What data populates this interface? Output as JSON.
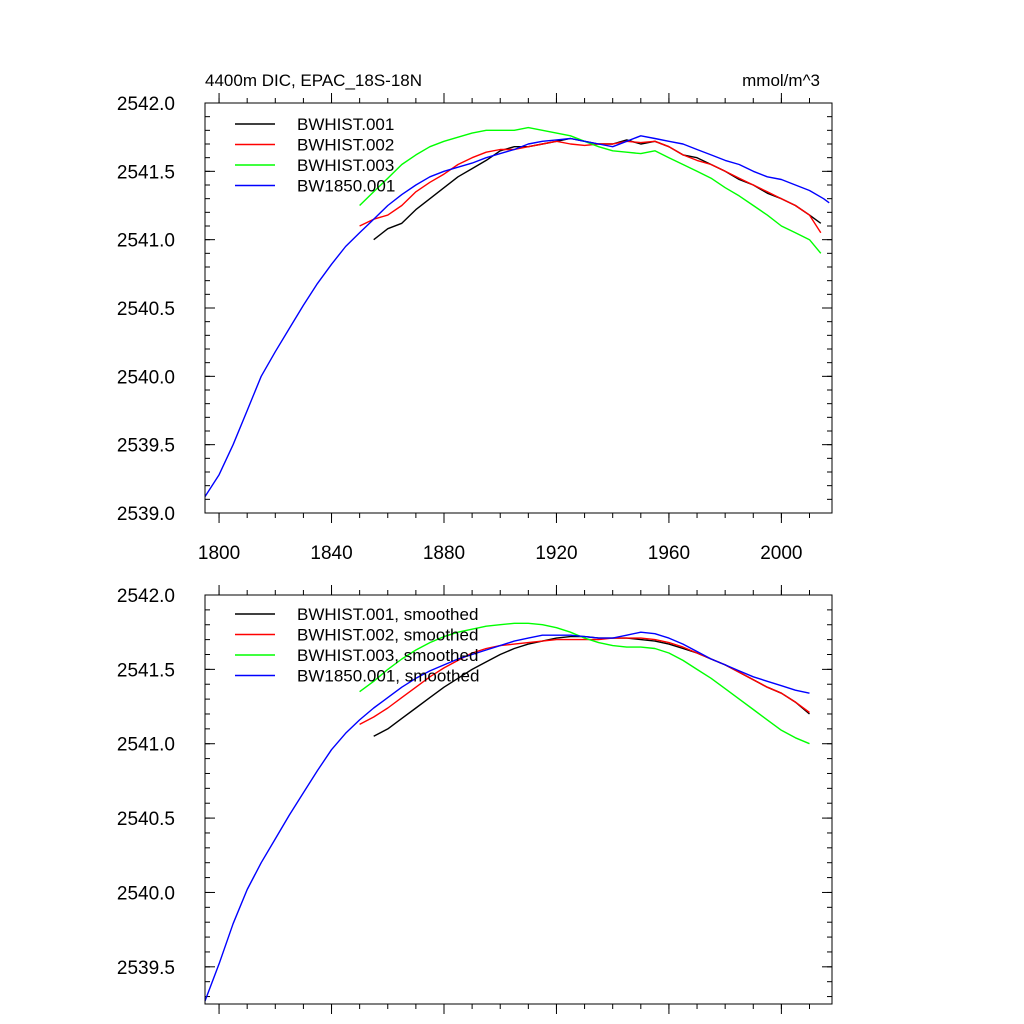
{
  "chart_data": [
    {
      "type": "line",
      "title_left": "4400m DIC, EPAC_18S-18N",
      "title_right": "mmol/m^3",
      "xlim": [
        1795,
        2018
      ],
      "ylim": [
        2539.0,
        2542.0
      ],
      "xticks": [
        1800,
        1840,
        1880,
        1920,
        1960,
        2000
      ],
      "yticks": [
        2539.0,
        2539.5,
        2540.0,
        2540.5,
        2541.0,
        2541.5,
        2542.0
      ],
      "ytick_labels": [
        "2539.0",
        "2539.5",
        "2540.0",
        "2540.5",
        "2541.0",
        "2541.5",
        "2542.0"
      ],
      "xtick_labels": [
        "1800",
        "1840",
        "1880",
        "1920",
        "1960",
        "2000"
      ],
      "legend_position": "top-left",
      "grid": false,
      "series": [
        {
          "name": "BWHIST.001",
          "color": "#000000",
          "x": [
            1855,
            1860,
            1865,
            1870,
            1875,
            1880,
            1885,
            1890,
            1895,
            1900,
            1905,
            1910,
            1915,
            1920,
            1925,
            1930,
            1935,
            1940,
            1945,
            1950,
            1955,
            1960,
            1965,
            1970,
            1975,
            1980,
            1985,
            1990,
            1995,
            2000,
            2005,
            2010,
            2014
          ],
          "y": [
            2541.0,
            2541.08,
            2541.12,
            2541.22,
            2541.3,
            2541.38,
            2541.46,
            2541.52,
            2541.58,
            2541.65,
            2541.68,
            2541.68,
            2541.7,
            2541.72,
            2541.74,
            2541.72,
            2541.7,
            2541.7,
            2541.73,
            2541.7,
            2541.72,
            2541.68,
            2541.62,
            2541.6,
            2541.55,
            2541.5,
            2541.44,
            2541.4,
            2541.34,
            2541.3,
            2541.25,
            2541.18,
            2541.12
          ]
        },
        {
          "name": "BWHIST.002",
          "color": "#ff0000",
          "x": [
            1850,
            1855,
            1860,
            1865,
            1870,
            1875,
            1880,
            1885,
            1890,
            1895,
            1900,
            1905,
            1910,
            1915,
            1920,
            1925,
            1930,
            1935,
            1940,
            1945,
            1950,
            1955,
            1960,
            1965,
            1970,
            1975,
            1980,
            1985,
            1990,
            1995,
            2000,
            2005,
            2010,
            2014
          ],
          "y": [
            2541.1,
            2541.15,
            2541.18,
            2541.25,
            2541.35,
            2541.42,
            2541.48,
            2541.55,
            2541.6,
            2541.64,
            2541.66,
            2541.66,
            2541.68,
            2541.7,
            2541.72,
            2541.7,
            2541.69,
            2541.7,
            2541.7,
            2541.72,
            2541.71,
            2541.72,
            2541.68,
            2541.62,
            2541.58,
            2541.55,
            2541.5,
            2541.45,
            2541.4,
            2541.35,
            2541.3,
            2541.25,
            2541.18,
            2541.05
          ]
        },
        {
          "name": "BWHIST.003",
          "color": "#00ff00",
          "x": [
            1850,
            1855,
            1860,
            1865,
            1870,
            1875,
            1880,
            1885,
            1890,
            1895,
            1900,
            1905,
            1910,
            1915,
            1920,
            1925,
            1930,
            1935,
            1940,
            1945,
            1950,
            1955,
            1960,
            1965,
            1970,
            1975,
            1980,
            1985,
            1990,
            1995,
            2000,
            2005,
            2010,
            2014
          ],
          "y": [
            2541.25,
            2541.35,
            2541.45,
            2541.55,
            2541.62,
            2541.68,
            2541.72,
            2541.75,
            2541.78,
            2541.8,
            2541.8,
            2541.8,
            2541.82,
            2541.8,
            2541.78,
            2541.76,
            2541.72,
            2541.68,
            2541.65,
            2541.64,
            2541.63,
            2541.65,
            2541.6,
            2541.55,
            2541.5,
            2541.45,
            2541.38,
            2541.32,
            2541.25,
            2541.18,
            2541.1,
            2541.05,
            2541.0,
            2540.9
          ]
        },
        {
          "name": "BW1850.001",
          "color": "#0000ff",
          "x": [
            1795,
            1800,
            1805,
            1810,
            1815,
            1820,
            1825,
            1830,
            1835,
            1840,
            1845,
            1850,
            1855,
            1860,
            1865,
            1870,
            1875,
            1880,
            1885,
            1890,
            1895,
            1900,
            1905,
            1910,
            1915,
            1920,
            1925,
            1930,
            1935,
            1940,
            1945,
            1950,
            1955,
            1960,
            1965,
            1970,
            1975,
            1980,
            1985,
            1990,
            1995,
            2000,
            2005,
            2010,
            2015,
            2017
          ],
          "y": [
            2539.12,
            2539.28,
            2539.5,
            2539.75,
            2540.0,
            2540.18,
            2540.35,
            2540.52,
            2540.68,
            2540.82,
            2540.95,
            2541.05,
            2541.15,
            2541.25,
            2541.33,
            2541.4,
            2541.46,
            2541.5,
            2541.53,
            2541.56,
            2541.6,
            2541.63,
            2541.66,
            2541.7,
            2541.72,
            2541.73,
            2541.74,
            2541.72,
            2541.7,
            2541.68,
            2541.72,
            2541.76,
            2541.74,
            2541.72,
            2541.7,
            2541.66,
            2541.62,
            2541.58,
            2541.55,
            2541.5,
            2541.46,
            2541.44,
            2541.4,
            2541.36,
            2541.3,
            2541.27
          ]
        }
      ]
    },
    {
      "type": "line",
      "xlim": [
        1795,
        2018
      ],
      "ylim": [
        2539.25,
        2542.0
      ],
      "xticks": [
        1800,
        1840,
        1880,
        1920,
        1960,
        2000
      ],
      "yticks": [
        2539.5,
        2540.0,
        2540.5,
        2541.0,
        2541.5,
        2542.0
      ],
      "ytick_labels": [
        "2539.5",
        "2540.0",
        "2540.5",
        "2541.0",
        "2541.5",
        "2542.0"
      ],
      "legend_position": "top-left",
      "grid": false,
      "series": [
        {
          "name": "BWHIST.001, smoothed",
          "color": "#000000",
          "x": [
            1855,
            1860,
            1865,
            1870,
            1875,
            1880,
            1885,
            1890,
            1895,
            1900,
            1905,
            1910,
            1915,
            1920,
            1925,
            1930,
            1935,
            1940,
            1945,
            1950,
            1955,
            1960,
            1965,
            1970,
            1975,
            1980,
            1985,
            1990,
            1995,
            2000,
            2005,
            2010
          ],
          "y": [
            2541.05,
            2541.1,
            2541.17,
            2541.24,
            2541.31,
            2541.38,
            2541.44,
            2541.5,
            2541.55,
            2541.6,
            2541.64,
            2541.67,
            2541.69,
            2541.71,
            2541.72,
            2541.72,
            2541.71,
            2541.71,
            2541.71,
            2541.7,
            2541.69,
            2541.67,
            2541.64,
            2541.61,
            2541.57,
            2541.53,
            2541.48,
            2541.43,
            2541.38,
            2541.34,
            2541.28,
            2541.2
          ]
        },
        {
          "name": "BWHIST.002, smoothed",
          "color": "#ff0000",
          "x": [
            1850,
            1855,
            1860,
            1865,
            1870,
            1875,
            1880,
            1885,
            1890,
            1895,
            1900,
            1905,
            1910,
            1915,
            1920,
            1925,
            1930,
            1935,
            1940,
            1945,
            1950,
            1955,
            1960,
            1965,
            1970,
            1975,
            1980,
            1985,
            1990,
            1995,
            2000,
            2005,
            2010
          ],
          "y": [
            2541.13,
            2541.18,
            2541.24,
            2541.31,
            2541.38,
            2541.45,
            2541.51,
            2541.56,
            2541.61,
            2541.64,
            2541.66,
            2541.67,
            2541.68,
            2541.69,
            2541.7,
            2541.7,
            2541.7,
            2541.7,
            2541.71,
            2541.71,
            2541.71,
            2541.7,
            2541.68,
            2541.65,
            2541.61,
            2541.57,
            2541.53,
            2541.48,
            2541.43,
            2541.38,
            2541.34,
            2541.28,
            2541.21
          ]
        },
        {
          "name": "BWHIST.003, smoothed",
          "color": "#00ff00",
          "x": [
            1850,
            1855,
            1860,
            1865,
            1870,
            1875,
            1880,
            1885,
            1890,
            1895,
            1900,
            1905,
            1910,
            1915,
            1920,
            1925,
            1930,
            1935,
            1940,
            1945,
            1950,
            1955,
            1960,
            1965,
            1970,
            1975,
            1980,
            1985,
            1990,
            1995,
            2000,
            2005,
            2010
          ],
          "y": [
            2541.35,
            2541.42,
            2541.5,
            2541.57,
            2541.63,
            2541.68,
            2541.72,
            2541.75,
            2541.77,
            2541.79,
            2541.8,
            2541.81,
            2541.81,
            2541.8,
            2541.78,
            2541.75,
            2541.71,
            2541.68,
            2541.66,
            2541.65,
            2541.65,
            2541.64,
            2541.61,
            2541.56,
            2541.5,
            2541.44,
            2541.37,
            2541.3,
            2541.23,
            2541.16,
            2541.09,
            2541.04,
            2541.0
          ]
        },
        {
          "name": "BW1850.001, smoothed",
          "color": "#0000ff",
          "x": [
            1795,
            1800,
            1805,
            1810,
            1815,
            1820,
            1825,
            1830,
            1835,
            1840,
            1845,
            1850,
            1855,
            1860,
            1865,
            1870,
            1875,
            1880,
            1885,
            1890,
            1895,
            1900,
            1905,
            1910,
            1915,
            1920,
            1925,
            1930,
            1935,
            1940,
            1945,
            1950,
            1955,
            1960,
            1965,
            1970,
            1975,
            1980,
            1985,
            1990,
            1995,
            2000,
            2005,
            2010
          ],
          "y": [
            2539.27,
            2539.52,
            2539.79,
            2540.02,
            2540.2,
            2540.36,
            2540.52,
            2540.67,
            2540.82,
            2540.96,
            2541.07,
            2541.16,
            2541.24,
            2541.31,
            2541.38,
            2541.44,
            2541.49,
            2541.53,
            2541.57,
            2541.6,
            2541.63,
            2541.66,
            2541.69,
            2541.71,
            2541.73,
            2541.73,
            2541.73,
            2541.72,
            2541.71,
            2541.71,
            2541.73,
            2541.75,
            2541.74,
            2541.71,
            2541.67,
            2541.62,
            2541.57,
            2541.53,
            2541.49,
            2541.45,
            2541.42,
            2541.39,
            2541.36,
            2541.34
          ]
        }
      ]
    }
  ]
}
